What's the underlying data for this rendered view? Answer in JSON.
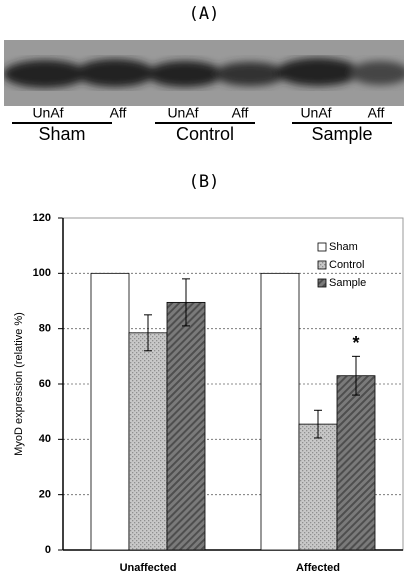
{
  "blot": {
    "title": "(A)",
    "groups": [
      {
        "name": "Sham",
        "lanes": [
          "UnAf",
          "Aff"
        ]
      },
      {
        "name": "Control",
        "lanes": [
          "UnAf",
          "Aff"
        ]
      },
      {
        "name": "Sample",
        "lanes": [
          "UnAf",
          "Aff"
        ]
      }
    ]
  },
  "chart_data": {
    "type": "bar",
    "title": "(B)",
    "y_label": "MyoD expression (relative %)",
    "categories": [
      "Unaffected",
      "Affected"
    ],
    "series": [
      {
        "name": "Sham",
        "color": "#ffffff",
        "values": [
          100,
          100
        ]
      },
      {
        "name": "Control",
        "color": "#c8c8c8",
        "values": [
          78.5,
          45.5
        ],
        "errors": [
          6.5,
          5
        ]
      },
      {
        "name": "Sample",
        "color": "#7a7a7a",
        "values": [
          89.5,
          63
        ],
        "errors": [
          8.5,
          7
        ]
      }
    ],
    "ylim": [
      0,
      120
    ],
    "yticks": [
      0,
      20,
      40,
      60,
      80,
      100,
      120
    ],
    "grid": true,
    "legend": "upper right",
    "annotations": [
      {
        "text": "*",
        "series": 2,
        "category": 1
      }
    ]
  }
}
